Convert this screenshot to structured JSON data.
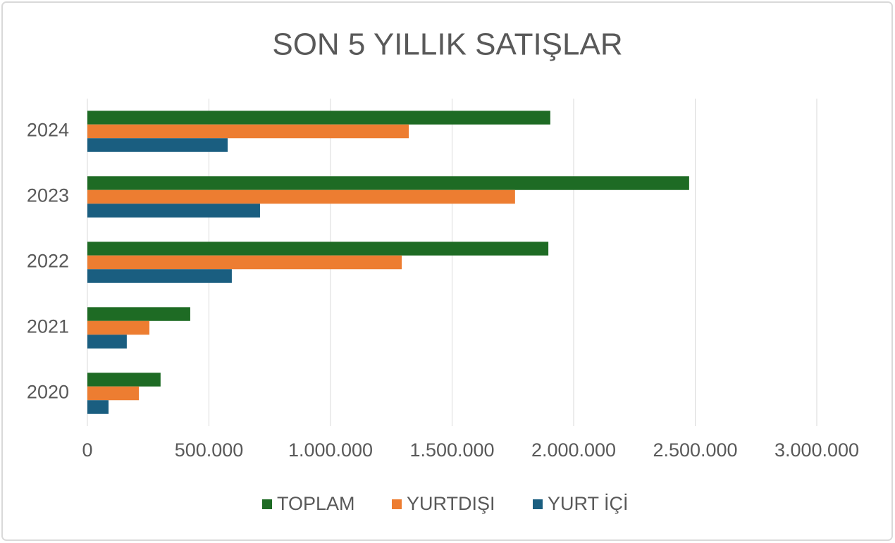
{
  "chart_data": {
    "type": "hbar",
    "title": "SON 5 YILLIK SATIŞLAR",
    "categories": [
      "2020",
      "2021",
      "2022",
      "2023",
      "2024"
    ],
    "series": [
      {
        "name": "TOPLAM",
        "color": "#1e6b24",
        "values": [
          301000,
          423000,
          1896000,
          2475000,
          1904000
        ]
      },
      {
        "name": "YURTDIŞI",
        "color": "#ed7d31",
        "values": [
          212000,
          255000,
          1293000,
          1759000,
          1322000
        ]
      },
      {
        "name": "YURT İÇİ",
        "color": "#1a5e80",
        "values": [
          87000,
          162000,
          594000,
          710000,
          577000
        ]
      }
    ],
    "xlim": [
      0,
      3000000
    ],
    "xticks": [
      0,
      {
        "value": 500000,
        "label": "500.000"
      },
      {
        "value": 1000000,
        "label": "1.000.000"
      },
      {
        "value": 1500000,
        "label": "1.500.000"
      },
      {
        "value": 2000000,
        "label": "2.000.000"
      },
      {
        "value": 2500000,
        "label": "2.500.000"
      },
      {
        "value": 3000000,
        "label": "3.000.000"
      }
    ],
    "grid": true,
    "legend": "bottom"
  }
}
